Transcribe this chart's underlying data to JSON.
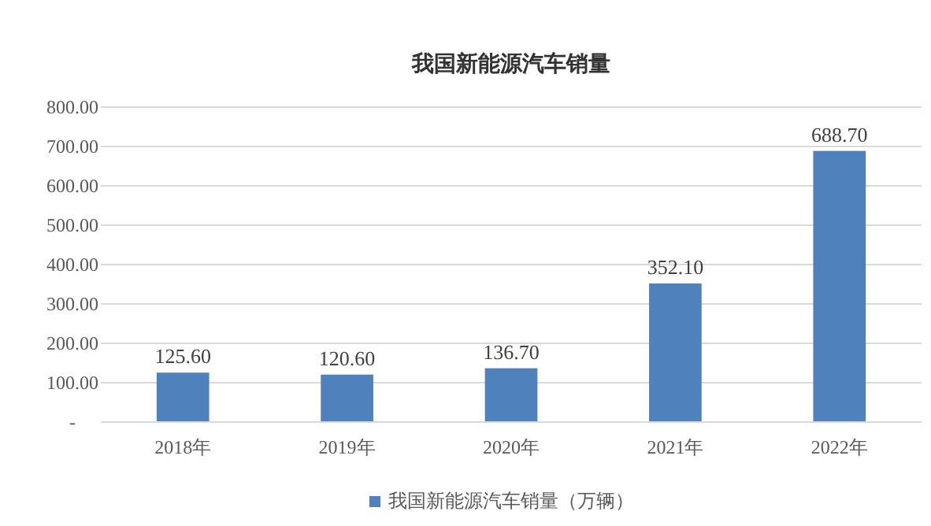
{
  "chart_data": {
    "type": "bar",
    "title": "我国新能源汽车销量",
    "categories": [
      "2018年",
      "2019年",
      "2020年",
      "2021年",
      "2022年"
    ],
    "series": [
      {
        "name": "我国新能源汽车销量（万辆）",
        "color": "#4f81bd",
        "values": [
          125.6,
          120.6,
          136.7,
          352.1,
          688.7
        ],
        "value_labels": [
          "125.60",
          "120.60",
          "136.70",
          "352.10",
          "688.70"
        ]
      }
    ],
    "ylim": [
      0,
      800
    ],
    "yticks": [
      {
        "value": 0,
        "label": "-"
      },
      {
        "value": 100,
        "label": "100.00"
      },
      {
        "value": 200,
        "label": "200.00"
      },
      {
        "value": 300,
        "label": "300.00"
      },
      {
        "value": 400,
        "label": "400.00"
      },
      {
        "value": 500,
        "label": "500.00"
      },
      {
        "value": 600,
        "label": "600.00"
      },
      {
        "value": 700,
        "label": "700.00"
      },
      {
        "value": 800,
        "label": "800.00"
      }
    ],
    "grid": "y",
    "legend": "bottom"
  }
}
